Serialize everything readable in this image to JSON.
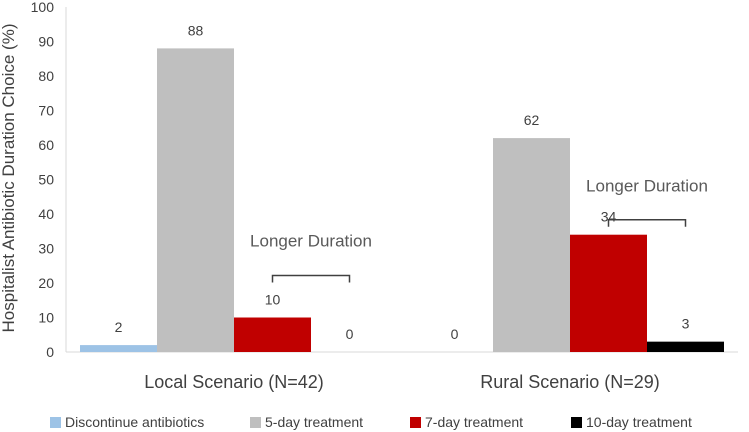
{
  "chart_data": {
    "type": "bar",
    "categories": [
      "Local Scenario (N=42)",
      "Rural Scenario (N=29)"
    ],
    "series": [
      {
        "name": "Discontinue antibiotics",
        "values": [
          2,
          0
        ],
        "color": "#9DC3E6"
      },
      {
        "name": "5-day treatment",
        "values": [
          88,
          62
        ],
        "color": "#BFBFBF"
      },
      {
        "name": "7-day treatment",
        "values": [
          10,
          34
        ],
        "color": "#C00000"
      },
      {
        "name": "10-day treatment",
        "values": [
          0,
          3
        ],
        "color": "#000000"
      }
    ],
    "ylabel": "Hospitalist Antibiotic Duration Choice (%)",
    "xlabel": "",
    "ylim": [
      0,
      100
    ],
    "yticks": [
      0,
      10,
      20,
      30,
      40,
      50,
      60,
      70,
      80,
      90,
      100
    ],
    "grid": false,
    "legend_position": "bottom",
    "annotations": [
      {
        "text": "Longer Duration",
        "category_index": 0
      },
      {
        "text": "Longer Duration",
        "category_index": 1
      }
    ]
  }
}
